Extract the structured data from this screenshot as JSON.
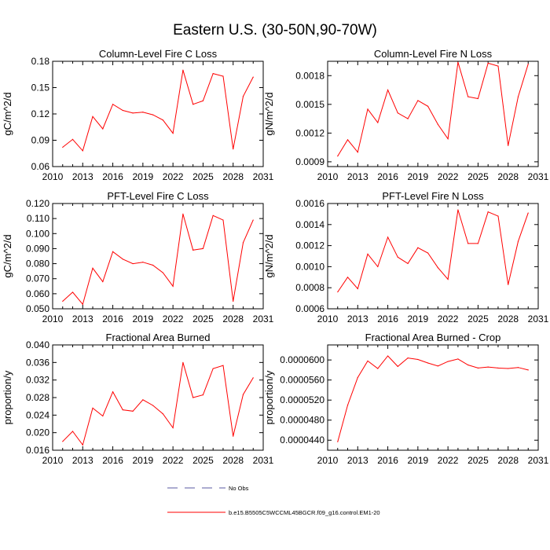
{
  "figure": {
    "title": "Eastern U.S. (30-50N,90-70W)",
    "legend": [
      {
        "label": "No Obs",
        "style": "dashed",
        "color": "#5a5aa0"
      },
      {
        "label": "b.e15.B5505C5WCCML45BGCR.f09_g16.control.EM1-20",
        "style": "solid",
        "color": "#ff0000"
      }
    ]
  },
  "chart_data": [
    {
      "type": "line",
      "title": "Column-Level Fire C Loss",
      "ylabel": "gC/m^2/d",
      "xlim": [
        2010,
        2031
      ],
      "ylim": [
        0.06,
        0.18
      ],
      "xticks": [
        "2010",
        "2013",
        "2016",
        "2019",
        "2022",
        "2025",
        "2028",
        "2031"
      ],
      "yticks": [
        "0.06",
        "0.09",
        "0.12",
        "0.15",
        "0.18"
      ],
      "x": [
        2011,
        2012,
        2013,
        2014,
        2015,
        2016,
        2017,
        2018,
        2019,
        2020,
        2021,
        2022,
        2023,
        2024,
        2025,
        2026,
        2027,
        2028,
        2029,
        2030
      ],
      "series": [
        {
          "color": "#ff0000",
          "values": [
            0.082,
            0.091,
            0.078,
            0.117,
            0.103,
            0.131,
            0.124,
            0.121,
            0.122,
            0.119,
            0.113,
            0.098,
            0.17,
            0.131,
            0.135,
            0.166,
            0.163,
            0.08,
            0.14,
            0.162
          ]
        }
      ]
    },
    {
      "type": "line",
      "title": "Column-Level Fire N Loss",
      "ylabel": "gN/m^2/d",
      "xlim": [
        2010,
        2031
      ],
      "ylim": [
        0.00085,
        0.00195
      ],
      "xticks": [
        "2010",
        "2013",
        "2016",
        "2019",
        "2022",
        "2025",
        "2028",
        "2031"
      ],
      "yticks": [
        "0.0009",
        "0.0012",
        "0.0015",
        "0.0018"
      ],
      "x": [
        2011,
        2012,
        2013,
        2014,
        2015,
        2016,
        2017,
        2018,
        2019,
        2020,
        2021,
        2022,
        2023,
        2024,
        2025,
        2026,
        2027,
        2028,
        2029,
        2030
      ],
      "series": [
        {
          "color": "#ff0000",
          "values": [
            0.00096,
            0.00113,
            0.001,
            0.00145,
            0.00131,
            0.00165,
            0.00141,
            0.00135,
            0.00154,
            0.00148,
            0.00129,
            0.00114,
            0.00194,
            0.00158,
            0.00156,
            0.00193,
            0.0019,
            0.00107,
            0.00158,
            0.00192
          ]
        }
      ]
    },
    {
      "type": "line",
      "title": "PFT-Level Fire C Loss",
      "ylabel": "gC/m^2/d",
      "xlim": [
        2010,
        2031
      ],
      "ylim": [
        0.05,
        0.12
      ],
      "xticks": [
        "2010",
        "2013",
        "2016",
        "2019",
        "2022",
        "2025",
        "2028",
        "2031"
      ],
      "yticks": [
        "0.050",
        "0.060",
        "0.070",
        "0.080",
        "0.090",
        "0.100",
        "0.110",
        "0.120"
      ],
      "x": [
        2011,
        2012,
        2013,
        2014,
        2015,
        2016,
        2017,
        2018,
        2019,
        2020,
        2021,
        2022,
        2023,
        2024,
        2025,
        2026,
        2027,
        2028,
        2029,
        2030
      ],
      "series": [
        {
          "color": "#ff0000",
          "values": [
            0.055,
            0.061,
            0.053,
            0.077,
            0.068,
            0.088,
            0.083,
            0.08,
            0.081,
            0.079,
            0.074,
            0.065,
            0.113,
            0.089,
            0.09,
            0.112,
            0.109,
            0.055,
            0.094,
            0.109
          ]
        }
      ]
    },
    {
      "type": "line",
      "title": "PFT-Level Fire N Loss",
      "ylabel": "gN/m^2/d",
      "xlim": [
        2010,
        2031
      ],
      "ylim": [
        0.0006,
        0.0016
      ],
      "xticks": [
        "2010",
        "2013",
        "2016",
        "2019",
        "2022",
        "2025",
        "2028",
        "2031"
      ],
      "yticks": [
        "0.0006",
        "0.0008",
        "0.0010",
        "0.0012",
        "0.0014",
        "0.0016"
      ],
      "x": [
        2011,
        2012,
        2013,
        2014,
        2015,
        2016,
        2017,
        2018,
        2019,
        2020,
        2021,
        2022,
        2023,
        2024,
        2025,
        2026,
        2027,
        2028,
        2029,
        2030
      ],
      "series": [
        {
          "color": "#ff0000",
          "values": [
            0.00076,
            0.0009,
            0.00079,
            0.00112,
            0.001,
            0.00128,
            0.00109,
            0.00103,
            0.00118,
            0.00113,
            0.00099,
            0.00088,
            0.00154,
            0.00122,
            0.00122,
            0.00152,
            0.00148,
            0.00083,
            0.00124,
            0.00151
          ]
        }
      ]
    },
    {
      "type": "line",
      "title": "Fractional Area Burned",
      "ylabel": "proportion/y",
      "xlim": [
        2010,
        2031
      ],
      "ylim": [
        0.016,
        0.04
      ],
      "xticks": [
        "2010",
        "2013",
        "2016",
        "2019",
        "2022",
        "2025",
        "2028",
        "2031"
      ],
      "yticks": [
        "0.016",
        "0.020",
        "0.024",
        "0.028",
        "0.032",
        "0.036",
        "0.040"
      ],
      "x": [
        2011,
        2012,
        2013,
        2014,
        2015,
        2016,
        2017,
        2018,
        2019,
        2020,
        2021,
        2022,
        2023,
        2024,
        2025,
        2026,
        2027,
        2028,
        2029,
        2030
      ],
      "series": [
        {
          "color": "#ff0000",
          "values": [
            0.018,
            0.0203,
            0.0172,
            0.0256,
            0.0238,
            0.0293,
            0.0252,
            0.0249,
            0.0275,
            0.0262,
            0.0243,
            0.0211,
            0.036,
            0.028,
            0.0286,
            0.0346,
            0.0353,
            0.0192,
            0.0287,
            0.0325
          ]
        }
      ]
    },
    {
      "type": "line",
      "title": "Fractional Area Burned - Crop",
      "ylabel": "proportion/y",
      "xlim": [
        2010,
        2031
      ],
      "ylim": [
        4.2e-05,
        6.3e-05
      ],
      "xticks": [
        "2010",
        "2013",
        "2016",
        "2019",
        "2022",
        "2025",
        "2028",
        "2031"
      ],
      "yticks": [
        "0.0000440",
        "0.0000480",
        "0.0000520",
        "0.0000560",
        "0.0000600"
      ],
      "x": [
        2011,
        2012,
        2013,
        2014,
        2015,
        2016,
        2017,
        2018,
        2019,
        2020,
        2021,
        2022,
        2023,
        2024,
        2025,
        2026,
        2027,
        2028,
        2029,
        2030
      ],
      "series": [
        {
          "color": "#ff0000",
          "values": [
            4.37e-05,
            5.1e-05,
            5.65e-05,
            5.98e-05,
            5.83e-05,
            6.08e-05,
            5.87e-05,
            6.04e-05,
            6.01e-05,
            5.94e-05,
            5.88e-05,
            5.97e-05,
            6.02e-05,
            5.9e-05,
            5.84e-05,
            5.86e-05,
            5.84e-05,
            5.83e-05,
            5.85e-05,
            5.8e-05
          ]
        }
      ]
    }
  ]
}
